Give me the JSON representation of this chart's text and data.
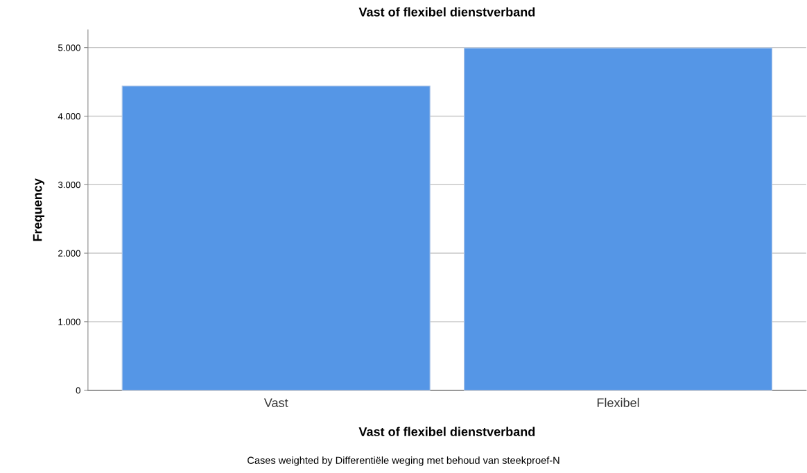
{
  "chart_data": {
    "type": "bar",
    "title": "Vast of flexibel dienstverband",
    "xlabel": "Vast of flexibel dienstverband",
    "ylabel": "Frequency",
    "categories": [
      "Vast",
      "Flexibel"
    ],
    "values": [
      4440,
      4995
    ],
    "color": "#5596e6",
    "ylim": [
      0,
      5260
    ],
    "yticks": [
      0,
      {
        "value": 1000,
        "label": "1.000"
      },
      {
        "value": 2000,
        "label": "2.000"
      },
      {
        "value": 3000,
        "label": "3.000"
      },
      {
        "value": 4000,
        "label": "4.000"
      },
      {
        "value": 5000,
        "label": "5.000"
      }
    ],
    "grid": "y",
    "legend": false,
    "annotations": [
      "Cases weighted by Differentiële weging met behoud van steekproef-N"
    ]
  }
}
